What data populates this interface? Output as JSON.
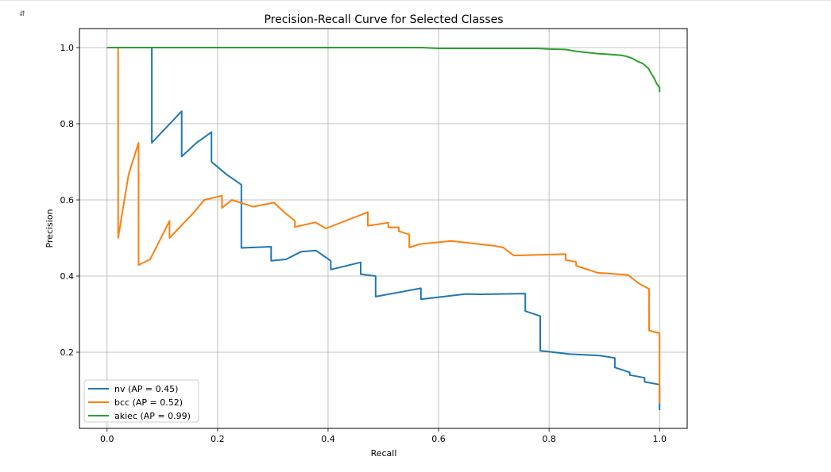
{
  "cell": {
    "output_icon": "output-toggle-icon",
    "output_icon_glyph": "⇵"
  },
  "chart_data": {
    "type": "line",
    "title": "Precision-Recall Curve for Selected Classes",
    "xlabel": "Recall",
    "ylabel": "Precision",
    "xlim": [
      -0.05,
      1.05
    ],
    "ylim": [
      0.0,
      1.05
    ],
    "xticks": [
      0.0,
      0.2,
      0.4,
      0.6,
      0.8,
      1.0
    ],
    "xtick_labels": [
      "0.0",
      "0.2",
      "0.4",
      "0.6",
      "0.8",
      "1.0"
    ],
    "yticks": [
      0.2,
      0.4,
      0.6,
      0.8,
      1.0
    ],
    "ytick_labels": [
      "0.2",
      "0.4",
      "0.6",
      "0.8",
      "1.0"
    ],
    "grid": true,
    "legend": "lower-left",
    "series": [
      {
        "name": "nv (AP = 0.45)",
        "color": "#1f77b4",
        "x": [
          0.0,
          0.081,
          0.081,
          0.135,
          0.135,
          0.162,
          0.189,
          0.189,
          0.216,
          0.243,
          0.243,
          0.297,
          0.297,
          0.324,
          0.351,
          0.378,
          0.405,
          0.405,
          0.459,
          0.459,
          0.486,
          0.486,
          0.568,
          0.568,
          0.649,
          0.676,
          0.757,
          0.757,
          0.784,
          0.784,
          0.838,
          0.892,
          0.919,
          0.919,
          0.946,
          0.946,
          0.973,
          0.973,
          1.0,
          1.0
        ],
        "y": [
          1.0,
          1.0,
          0.75,
          0.833,
          0.714,
          0.75,
          0.778,
          0.7,
          0.667,
          0.64,
          0.474,
          0.477,
          0.44,
          0.444,
          0.464,
          0.467,
          0.44,
          0.417,
          0.436,
          0.405,
          0.4,
          0.346,
          0.368,
          0.339,
          0.353,
          0.352,
          0.354,
          0.308,
          0.295,
          0.204,
          0.195,
          0.191,
          0.185,
          0.16,
          0.147,
          0.14,
          0.133,
          0.122,
          0.115,
          0.048
        ]
      },
      {
        "name": "bcc (AP = 0.52)",
        "color": "#ff7f0e",
        "x": [
          0.0,
          0.02,
          0.02,
          0.039,
          0.057,
          0.057,
          0.078,
          0.113,
          0.113,
          0.157,
          0.176,
          0.208,
          0.208,
          0.226,
          0.264,
          0.302,
          0.321,
          0.34,
          0.34,
          0.377,
          0.396,
          0.472,
          0.472,
          0.509,
          0.509,
          0.528,
          0.528,
          0.547,
          0.547,
          0.566,
          0.623,
          0.698,
          0.717,
          0.736,
          0.83,
          0.83,
          0.849,
          0.849,
          0.887,
          0.943,
          0.962,
          0.981,
          0.981,
          1.0,
          1.0
        ],
        "y": [
          1.0,
          1.0,
          0.5,
          0.667,
          0.75,
          0.429,
          0.444,
          0.545,
          0.5,
          0.567,
          0.6,
          0.611,
          0.579,
          0.6,
          0.582,
          0.593,
          0.567,
          0.545,
          0.529,
          0.541,
          0.525,
          0.568,
          0.532,
          0.54,
          0.528,
          0.528,
          0.518,
          0.509,
          0.475,
          0.484,
          0.492,
          0.48,
          0.475,
          0.454,
          0.458,
          0.442,
          0.437,
          0.427,
          0.409,
          0.403,
          0.381,
          0.366,
          0.257,
          0.25,
          0.065
        ]
      },
      {
        "name": "akiec (AP = 0.99)",
        "color": "#2ca02c",
        "x": [
          0.0,
          0.3,
          0.57,
          0.6,
          0.78,
          0.8,
          0.83,
          0.85,
          0.87,
          0.89,
          0.91,
          0.93,
          0.94,
          0.95,
          0.96,
          0.97,
          0.98,
          0.985,
          0.99,
          0.995,
          1.0,
          1.0
        ],
        "y": [
          1.0,
          1.0,
          1.0,
          0.998,
          0.998,
          0.996,
          0.995,
          0.99,
          0.987,
          0.984,
          0.982,
          0.98,
          0.977,
          0.972,
          0.964,
          0.958,
          0.945,
          0.932,
          0.92,
          0.905,
          0.895,
          0.883
        ]
      }
    ]
  }
}
